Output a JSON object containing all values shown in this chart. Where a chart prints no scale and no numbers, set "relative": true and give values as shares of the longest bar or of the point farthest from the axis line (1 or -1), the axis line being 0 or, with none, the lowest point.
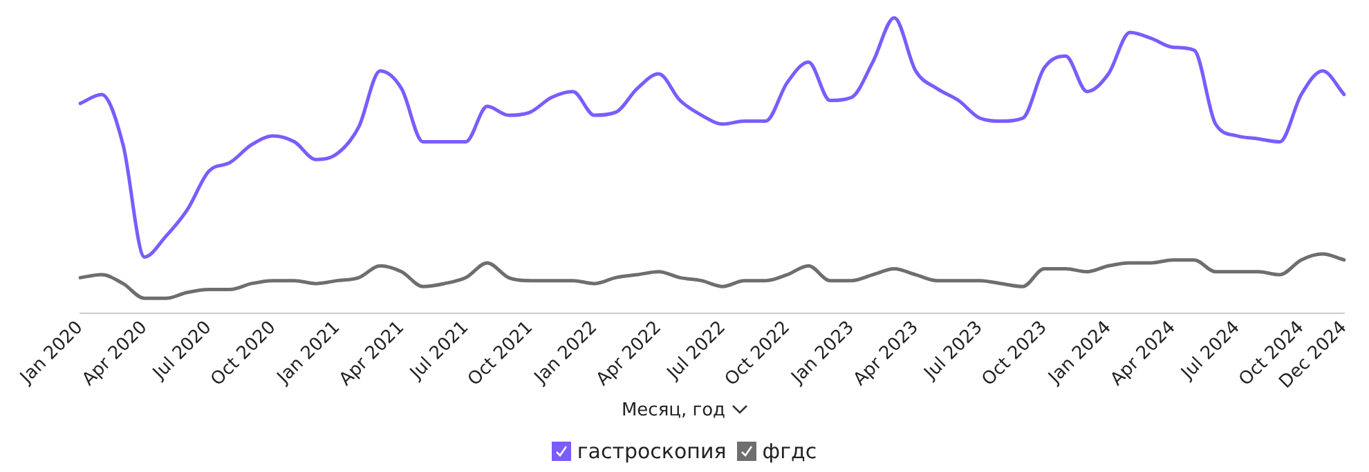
{
  "chart_data": {
    "type": "line",
    "relative": true,
    "xlabel": "Месяц, год",
    "legend": "bottom",
    "marker": "none",
    "line_style": "solid",
    "categories": [
      "Jan 2020",
      null,
      null,
      "Apr 2020",
      null,
      null,
      "Jul 2020",
      null,
      null,
      "Oct 2020",
      null,
      null,
      "Jan 2021",
      null,
      null,
      "Apr 2021",
      null,
      null,
      "Jul 2021",
      null,
      null,
      "Oct 2021",
      null,
      null,
      "Jan 2022",
      null,
      null,
      "Apr 2022",
      null,
      null,
      "Jul 2022",
      null,
      null,
      "Oct 2022",
      null,
      null,
      "Jan 2023",
      null,
      null,
      "Apr 2023",
      null,
      null,
      "Jul 2023",
      null,
      null,
      "Oct 2023",
      null,
      null,
      "Jan 2024",
      null,
      null,
      "Apr 2024",
      null,
      null,
      "Jul 2024",
      null,
      null,
      "Oct 2024",
      null,
      "Dec 2024"
    ],
    "series": [
      {
        "name": "гастроскопия",
        "color": "#7b5cff",
        "values": [
          0.71,
          0.74,
          0.57,
          0.19,
          0.26,
          0.35,
          0.48,
          0.51,
          0.57,
          0.6,
          0.58,
          0.52,
          0.54,
          0.63,
          0.82,
          0.76,
          0.58,
          0.58,
          0.58,
          0.7,
          0.67,
          0.68,
          0.73,
          0.75,
          0.67,
          0.68,
          0.76,
          0.81,
          0.72,
          0.67,
          0.64,
          0.65,
          0.65,
          0.78,
          0.85,
          0.72,
          0.73,
          0.85,
          1,
          0.82,
          0.76,
          0.72,
          0.66,
          0.65,
          0.66,
          0.83,
          0.87,
          0.75,
          0.81,
          0.95,
          0.93,
          0.9,
          0.89,
          0.64,
          0.6,
          0.59,
          0.58,
          0.74,
          0.82,
          0.74
        ]
      },
      {
        "name": "фгдс",
        "color": "#6e6e6e",
        "values": [
          0.12,
          0.13,
          0.1,
          0.05,
          0.05,
          0.07,
          0.08,
          0.08,
          0.1,
          0.11,
          0.11,
          0.1,
          0.11,
          0.12,
          0.16,
          0.14,
          0.09,
          0.1,
          0.12,
          0.17,
          0.12,
          0.11,
          0.11,
          0.11,
          0.1,
          0.12,
          0.13,
          0.14,
          0.12,
          0.11,
          0.09,
          0.11,
          0.11,
          0.13,
          0.16,
          0.11,
          0.11,
          0.13,
          0.15,
          0.13,
          0.11,
          0.11,
          0.11,
          0.1,
          0.09,
          0.15,
          0.15,
          0.14,
          0.16,
          0.17,
          0.17,
          0.18,
          0.18,
          0.14,
          0.14,
          0.14,
          0.13,
          0.18,
          0.2,
          0.18
        ]
      }
    ]
  }
}
